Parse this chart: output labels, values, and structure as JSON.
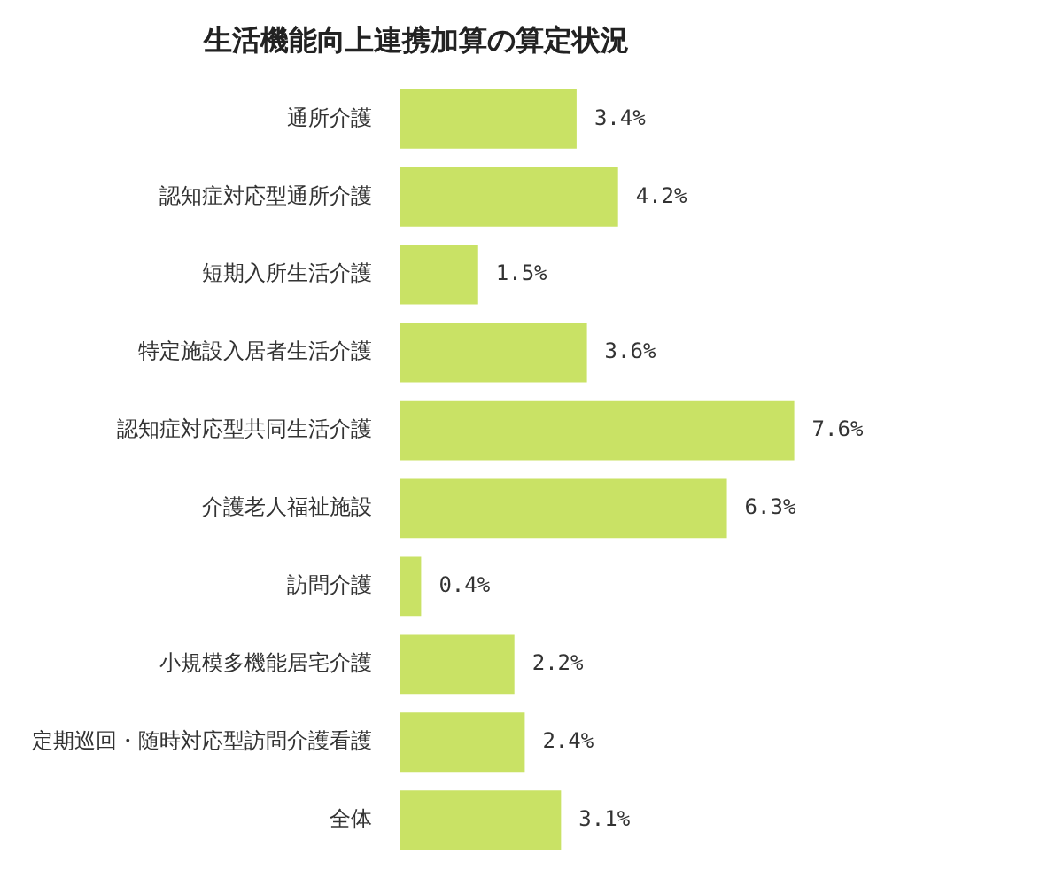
{
  "chart_data": {
    "type": "bar",
    "orientation": "horizontal",
    "title": "生活機能向上連携加算の算定状況",
    "categories": [
      "通所介護",
      "認知症対応型通所介護",
      "短期入所生活介護",
      "特定施設入居者生活介護",
      "認知症対応型共同生活介護",
      "介護老人福祉施設",
      "訪問介護",
      "小規模多機能居宅介護",
      "定期巡回・随時対応型訪問介護看護",
      "全体"
    ],
    "values": [
      3.4,
      4.2,
      1.5,
      3.6,
      7.6,
      6.3,
      0.4,
      2.2,
      2.4,
      3.1
    ],
    "value_labels": [
      "3.4%",
      "4.2%",
      "1.5%",
      "3.6%",
      "7.6%",
      "6.3%",
      "0.4%",
      "2.2%",
      "2.4%",
      "3.1%"
    ],
    "color": "#c9e265"
  }
}
